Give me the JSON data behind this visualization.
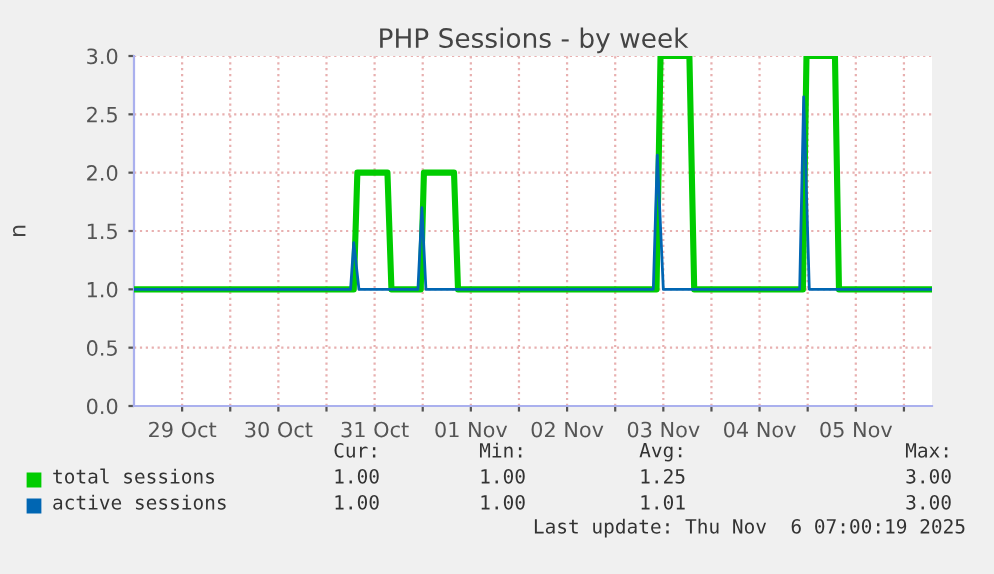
{
  "chart_data": {
    "type": "line",
    "title": "PHP Sessions - by week",
    "ylabel": "n",
    "xlim": [
      "2025-10-29T00:00",
      "2025-11-06T07:00"
    ],
    "xticks": [
      {
        "value": "2025-10-29T12:00",
        "label": "29 Oct"
      },
      {
        "value": "2025-10-30T12:00",
        "label": "30 Oct"
      },
      {
        "value": "2025-10-31T12:00",
        "label": "31 Oct"
      },
      {
        "value": "2025-11-01T12:00",
        "label": "01 Nov"
      },
      {
        "value": "2025-11-02T12:00",
        "label": "02 Nov"
      },
      {
        "value": "2025-11-03T12:00",
        "label": "03 Nov"
      },
      {
        "value": "2025-11-04T12:00",
        "label": "04 Nov"
      },
      {
        "value": "2025-11-05T12:00",
        "label": "05 Nov"
      },
      {
        "value": "2025-10-30T00:00",
        "label": null
      },
      {
        "value": "2025-10-31T00:00",
        "label": null
      },
      {
        "value": "2025-11-01T00:00",
        "label": null
      },
      {
        "value": "2025-11-02T00:00",
        "label": null
      },
      {
        "value": "2025-11-03T00:00",
        "label": null
      },
      {
        "value": "2025-11-04T00:00",
        "label": null
      },
      {
        "value": "2025-11-05T00:00",
        "label": null
      },
      {
        "value": "2025-11-06T00:00",
        "label": null
      }
    ],
    "ylim": [
      0,
      3
    ],
    "yticks": [
      {
        "value": 0,
        "label": "0.0"
      },
      {
        "value": 0.5,
        "label": "0.5"
      },
      {
        "value": 1,
        "label": "1.0"
      },
      {
        "value": 1.5,
        "label": "1.5"
      },
      {
        "value": 2,
        "label": "2.0"
      },
      {
        "value": 2.5,
        "label": "2.5"
      },
      {
        "value": 3,
        "label": "3.0"
      }
    ],
    "grid": true,
    "legend": "bottom",
    "marker": "none",
    "line_style": "solid",
    "series": [
      {
        "name": "total sessions",
        "color": "#00cc00",
        "x": [
          "2025-10-29T00:00",
          "2025-10-31T06:48",
          "2025-10-31T07:42",
          "2025-10-31T15:12",
          "2025-10-31T16:12",
          "2025-10-31T23:30",
          "2025-11-01T00:18",
          "2025-11-01T07:48",
          "2025-11-01T08:48",
          "2025-11-03T10:18",
          "2025-11-03T11:18",
          "2025-11-03T18:30",
          "2025-11-03T19:42",
          "2025-11-04T22:48",
          "2025-11-04T23:42",
          "2025-11-05T06:48",
          "2025-11-05T07:48",
          "2025-11-06T07:00"
        ],
        "values": [
          1,
          1,
          2,
          2,
          1,
          1,
          2,
          2,
          1,
          1,
          3,
          3,
          1,
          1,
          3,
          3,
          1,
          1
        ]
      },
      {
        "name": "active sessions",
        "color": "#0066b3",
        "x": [
          "2025-10-29T00:00",
          "2025-10-31T06:00",
          "2025-10-31T06:48",
          "2025-10-31T08:06",
          "2025-10-31T22:48",
          "2025-10-31T23:48",
          "2025-11-01T00:48",
          "2025-11-03T09:30",
          "2025-11-03T10:30",
          "2025-11-03T12:00",
          "2025-11-04T22:00",
          "2025-11-04T23:00",
          "2025-11-05T00:24",
          "2025-11-06T07:00"
        ],
        "values": [
          1,
          1,
          1.4,
          1,
          1,
          1.7,
          1,
          1,
          2.15,
          1,
          1,
          2.65,
          1,
          1
        ]
      }
    ],
    "annotations": [
      "Cur:",
      "Min:",
      "Avg:",
      "Max:",
      "1.00",
      "1.00",
      "1.25",
      "3.00",
      "1.00",
      "1.00",
      "1.01",
      "3.00",
      "Last update: Thu Nov  6 07:00:19 2025"
    ]
  }
}
